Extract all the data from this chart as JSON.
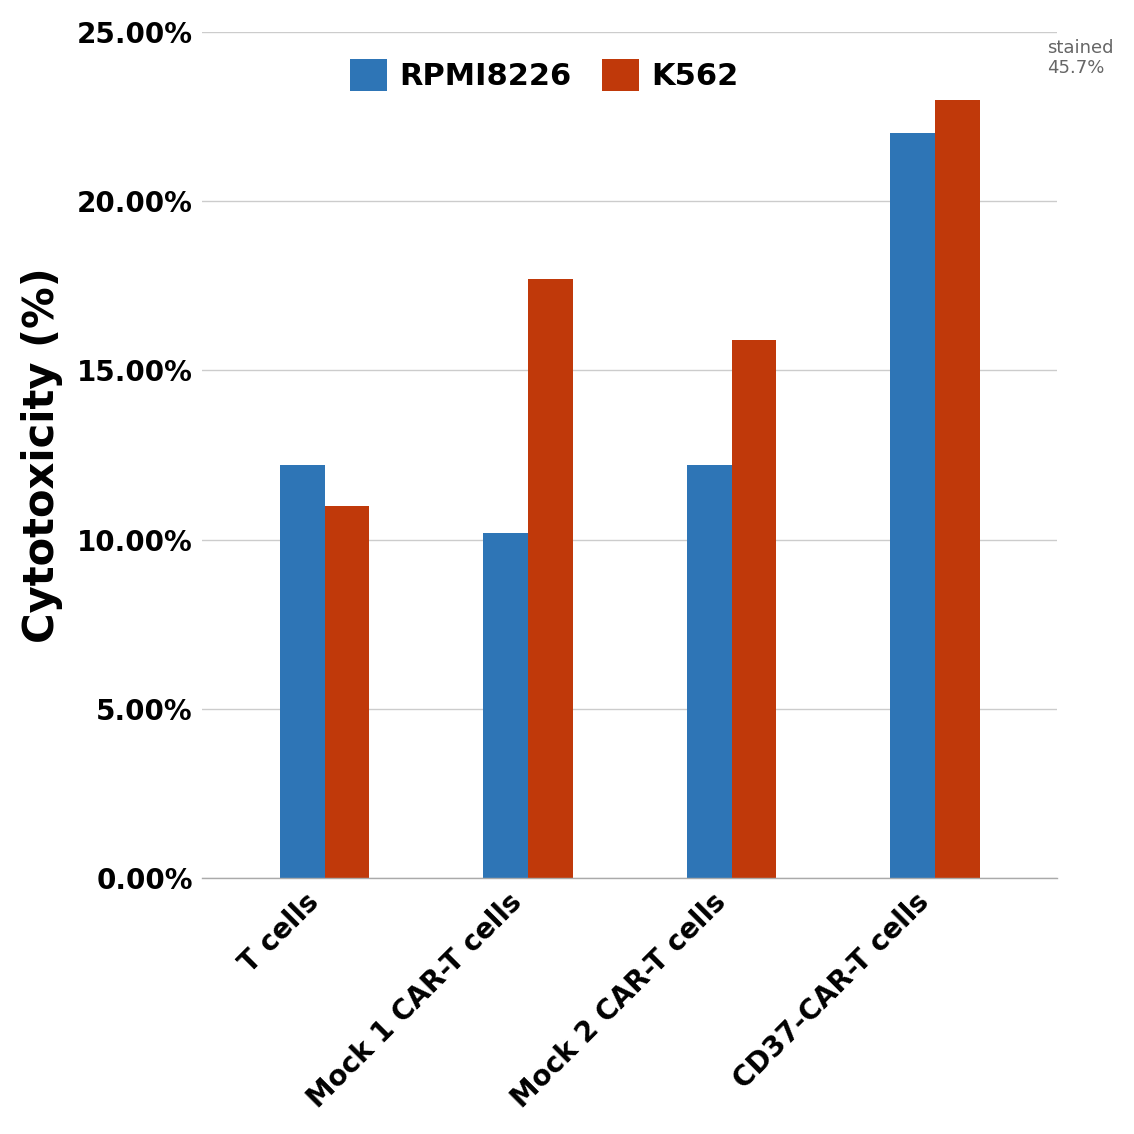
{
  "categories": [
    "T cells",
    "Mock 1 CAR-T cells",
    "Mock 2 CAR-T cells",
    "CD37-CAR-T cells"
  ],
  "rpmi8226_values": [
    0.122,
    0.102,
    0.122,
    0.22
  ],
  "k562_values": [
    0.11,
    0.177,
    0.159,
    0.23
  ],
  "rpmi_color": "#2E75B6",
  "k562_color": "#C0390A",
  "ylabel": "Cytotoxicity (%)",
  "ylim": [
    0,
    0.25
  ],
  "yticks": [
    0.0,
    0.05,
    0.1,
    0.15,
    0.2,
    0.25
  ],
  "ytick_labels": [
    "0.00%",
    "5.00%",
    "10.00%",
    "15.00%",
    "20.00%",
    "25.00%"
  ],
  "legend_rpmi": "RPMI8226",
  "legend_k562": "K562",
  "annotation_text": "stained\n45.7%",
  "bar_width": 0.22,
  "background_color": "#FFFFFF",
  "grid_color": "#CCCCCC",
  "ylabel_fontsize": 30,
  "tick_fontsize": 20,
  "legend_fontsize": 22,
  "xtick_fontsize": 20,
  "annotation_fontsize": 13,
  "annotation_color": "#666666"
}
